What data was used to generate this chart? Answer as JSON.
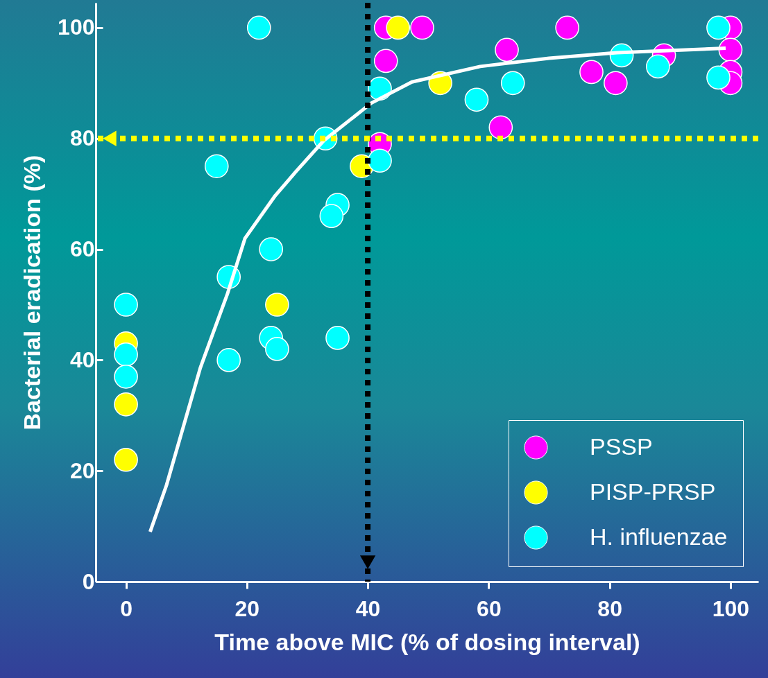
{
  "chart_data": {
    "type": "scatter",
    "xlabel": "Time above MIC (% of dosing interval)",
    "ylabel": "Bacterial eradication (%)",
    "xlim": [
      -5,
      104.6
    ],
    "ylim": [
      0,
      104.5
    ],
    "xticks": [
      0,
      20,
      40,
      60,
      80,
      100
    ],
    "yticks": [
      0,
      20,
      40,
      60,
      80,
      100
    ],
    "legend": "bottom right",
    "marker": "circle",
    "grid": false,
    "series": [
      {
        "name": "PSSP",
        "color": "#ff00ff",
        "x": [
          43,
          43,
          42,
          49,
          63,
          62,
          73,
          77,
          81,
          89,
          100,
          100,
          100,
          100
        ],
        "values": [
          100,
          94,
          79,
          100,
          96,
          82,
          100,
          92,
          90,
          95,
          100,
          96,
          92,
          90
        ]
      },
      {
        "name": "PISP-PRSP",
        "color": "#ffff00",
        "x": [
          0,
          0,
          0,
          25,
          39,
          45,
          52
        ],
        "values": [
          43,
          32,
          22,
          50,
          75,
          100,
          90
        ]
      },
      {
        "name": "H. influenzae",
        "color": "#00ffff",
        "x": [
          0,
          0,
          0,
          15,
          22,
          17,
          17,
          24,
          24,
          25,
          35,
          34,
          33,
          35,
          42,
          42,
          58,
          64,
          82,
          88,
          98,
          98
        ],
        "values": [
          50,
          41,
          37,
          75,
          100,
          55,
          40,
          60,
          44,
          42,
          68,
          66,
          80,
          44,
          89,
          76,
          87,
          90,
          95,
          93,
          100,
          91
        ]
      },
      {
        "type": "line",
        "color": "#ffffff",
        "line_style": "solid",
        "marker": "none",
        "x": [
          4,
          6.7,
          12.3,
          16.8,
          19.7,
          24.7,
          28.1,
          32.7,
          40.6,
          47.3,
          58.6,
          70,
          81.2,
          99.2
        ],
        "values": [
          9,
          17.4,
          38.6,
          52,
          62,
          69.7,
          74,
          79.6,
          86.4,
          90.2,
          93,
          94.5,
          95.5,
          96.3
        ]
      }
    ],
    "ref_lines": [
      {
        "axis": "x",
        "value": 40,
        "color": "#000000",
        "line_style": "dotted"
      },
      {
        "axis": "y",
        "value": 80,
        "color": "#ffff00",
        "line_style": "dotted"
      }
    ]
  }
}
